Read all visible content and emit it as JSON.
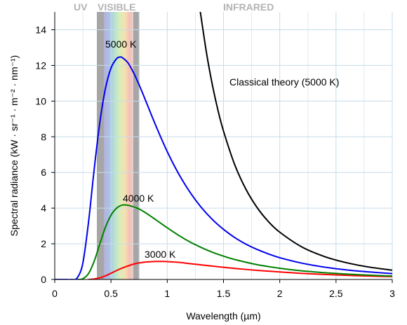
{
  "chart_data": {
    "type": "line",
    "xlabel": "Wavelength (µm)",
    "ylabel": "Spectral radiance (kW · sr⁻¹ · m⁻² · nm⁻¹)",
    "xlim": [
      0,
      3
    ],
    "ylim": [
      0,
      15
    ],
    "x_ticks": [
      "0",
      "0.5",
      "1",
      "1.5",
      "2",
      "2.5",
      "3"
    ],
    "y_ticks": [
      "0",
      "2",
      "4",
      "6",
      "8",
      "10",
      "12",
      "14"
    ],
    "grid": true,
    "regions": [
      {
        "label": "UV",
        "x_range": [
          0,
          0.38
        ]
      },
      {
        "label": "VISIBLE",
        "x_range": [
          0.38,
          0.75
        ]
      },
      {
        "label": "INFRARED",
        "x_range": [
          0.75,
          3
        ]
      }
    ],
    "series": [
      {
        "name": "5000 K",
        "color": "#0000ee",
        "x": [
          0.1,
          0.15,
          0.2,
          0.25,
          0.3,
          0.35,
          0.4,
          0.45,
          0.5,
          0.55,
          0.58,
          0.6,
          0.65,
          0.7,
          0.75,
          0.8,
          0.9,
          1.0,
          1.1,
          1.2,
          1.3,
          1.4,
          1.5,
          1.6,
          1.7,
          1.8,
          1.9,
          2.0,
          2.2,
          2.4,
          2.6,
          2.8,
          3.0
        ],
        "y": [
          0.0,
          0.0,
          0.09,
          0.92,
          3.2,
          6.14,
          8.77,
          10.69,
          11.85,
          12.38,
          12.47,
          12.44,
          12.15,
          11.6,
          10.91,
          10.15,
          8.6,
          7.17,
          5.94,
          4.91,
          4.06,
          3.37,
          2.81,
          2.35,
          1.98,
          1.68,
          1.43,
          1.22,
          0.91,
          0.69,
          0.53,
          0.42,
          0.33
        ]
      },
      {
        "name": "4000 K",
        "color": "#008000",
        "x": [
          0.2,
          0.25,
          0.3,
          0.35,
          0.4,
          0.45,
          0.5,
          0.55,
          0.6,
          0.65,
          0.72,
          0.75,
          0.8,
          0.85,
          0.9,
          1.0,
          1.1,
          1.2,
          1.3,
          1.4,
          1.5,
          1.6,
          1.8,
          2.0,
          2.2,
          2.4,
          2.6,
          2.8,
          3.0
        ],
        "y": [
          0.0,
          0.04,
          0.33,
          1.01,
          1.98,
          2.92,
          3.6,
          4.0,
          4.17,
          4.16,
          4.03,
          3.95,
          3.77,
          3.56,
          3.34,
          2.9,
          2.48,
          2.11,
          1.8,
          1.53,
          1.31,
          1.12,
          0.83,
          0.63,
          0.48,
          0.38,
          0.3,
          0.24,
          0.19
        ]
      },
      {
        "name": "3000 K",
        "color": "#ff0000",
        "x": [
          0.3,
          0.35,
          0.4,
          0.45,
          0.5,
          0.55,
          0.6,
          0.7,
          0.8,
          0.9,
          0.97,
          1.0,
          1.1,
          1.2,
          1.3,
          1.4,
          1.5,
          1.6,
          1.8,
          2.0,
          2.2,
          2.4,
          2.6,
          2.8,
          3.0
        ],
        "y": [
          0.0,
          0.03,
          0.09,
          0.2,
          0.35,
          0.5,
          0.64,
          0.86,
          0.97,
          1.01,
          1.01,
          1.0,
          0.96,
          0.89,
          0.82,
          0.75,
          0.68,
          0.62,
          0.51,
          0.42,
          0.34,
          0.28,
          0.23,
          0.19,
          0.16
        ]
      },
      {
        "name": "Classical theory (5000 K)",
        "color": "#000000",
        "x": [
          1.294,
          1.35,
          1.4,
          1.45,
          1.5,
          1.6,
          1.7,
          1.8,
          1.9,
          2.0,
          2.2,
          2.4,
          2.6,
          2.8,
          3.0
        ],
        "y": [
          15.0,
          12.66,
          10.94,
          9.51,
          8.32,
          6.43,
          5.05,
          4.02,
          3.24,
          2.65,
          1.81,
          1.28,
          0.93,
          0.69,
          0.52
        ]
      }
    ],
    "annotations": [
      "5000 K",
      "4000 K",
      "3000 K",
      "Classical theory (5000 K)"
    ]
  }
}
